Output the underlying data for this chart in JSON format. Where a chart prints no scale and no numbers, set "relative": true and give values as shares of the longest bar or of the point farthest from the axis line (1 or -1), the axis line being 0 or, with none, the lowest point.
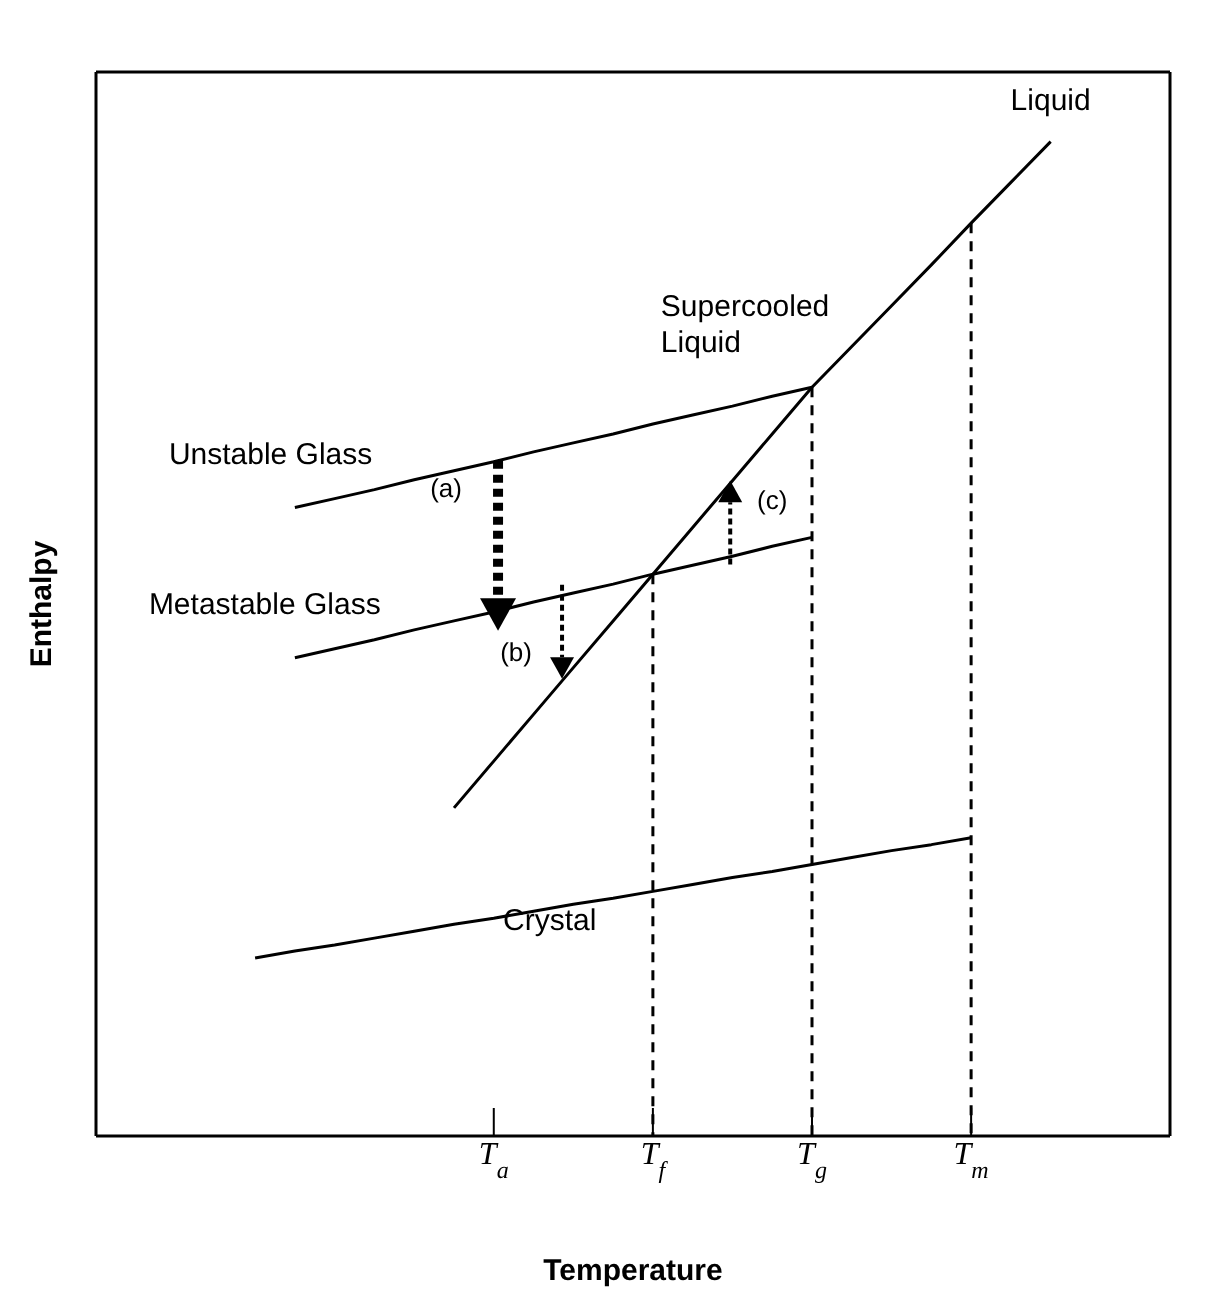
{
  "chart_data": {
    "type": "line",
    "xlabel": "Temperature",
    "ylabel": "Enthalpy",
    "relative": true,
    "marker": "none",
    "categories": [
      null,
      null,
      null,
      null,
      null,
      null,
      null,
      null,
      null,
      null,
      "T$_{a}$",
      null,
      null,
      null,
      "T$_{f}$",
      null,
      null,
      null,
      "T$_{g}$",
      null,
      null,
      null,
      "T$_{m}$",
      null,
      null,
      null,
      null,
      null
    ],
    "series": [
      {
        "name": "Liquid",
        "color": "#000000",
        "values": [
          null,
          null,
          null,
          null,
          null,
          null,
          null,
          null,
          null,
          0.33,
          0.377,
          0.424,
          0.471,
          0.518,
          0.565,
          0.612,
          0.659,
          0.706,
          0.753,
          0.794,
          0.835,
          0.876,
          0.918,
          0.959,
          1.0,
          null,
          null,
          null
        ]
      },
      {
        "name": "Unstable Glass",
        "color": "#000000",
        "values": [
          null,
          null,
          null,
          null,
          null,
          0.632,
          0.641,
          0.65,
          0.66,
          0.669,
          0.678,
          0.688,
          0.697,
          0.706,
          0.716,
          0.725,
          0.734,
          0.744,
          0.753,
          null,
          null,
          null,
          null,
          null,
          null,
          null,
          null,
          null
        ]
      },
      {
        "name": "Metastable Glass",
        "color": "#000000",
        "values": [
          null,
          null,
          null,
          null,
          null,
          0.481,
          0.49,
          0.499,
          0.509,
          0.518,
          0.527,
          0.537,
          0.546,
          0.555,
          0.565,
          0.574,
          0.583,
          0.593,
          0.602,
          null,
          null,
          null,
          null,
          null,
          null,
          null,
          null,
          null
        ]
      },
      {
        "name": "Crystal",
        "color": "#000000",
        "values": [
          null,
          null,
          null,
          null,
          0.179,
          0.186,
          0.192,
          0.199,
          0.206,
          0.213,
          0.219,
          0.226,
          0.233,
          0.239,
          0.246,
          0.253,
          0.26,
          0.266,
          0.273,
          0.28,
          0.287,
          0.293,
          0.3,
          null,
          null,
          null,
          null,
          null
        ]
      }
    ],
    "ref_lines": [
      {
        "axis": "x",
        "value": "T$_{f}$",
        "line_style": "dashed",
        "color": "#000000"
      },
      {
        "axis": "x",
        "value": "T$_{g}$",
        "line_style": "dashed",
        "color": "#000000"
      },
      {
        "axis": "x",
        "value": "T$_{m}$",
        "line_style": "dashed",
        "color": "#000000"
      }
    ],
    "annotations": [
      "Supercooled Liquid",
      "(a)",
      "(b)",
      "(c)"
    ]
  }
}
